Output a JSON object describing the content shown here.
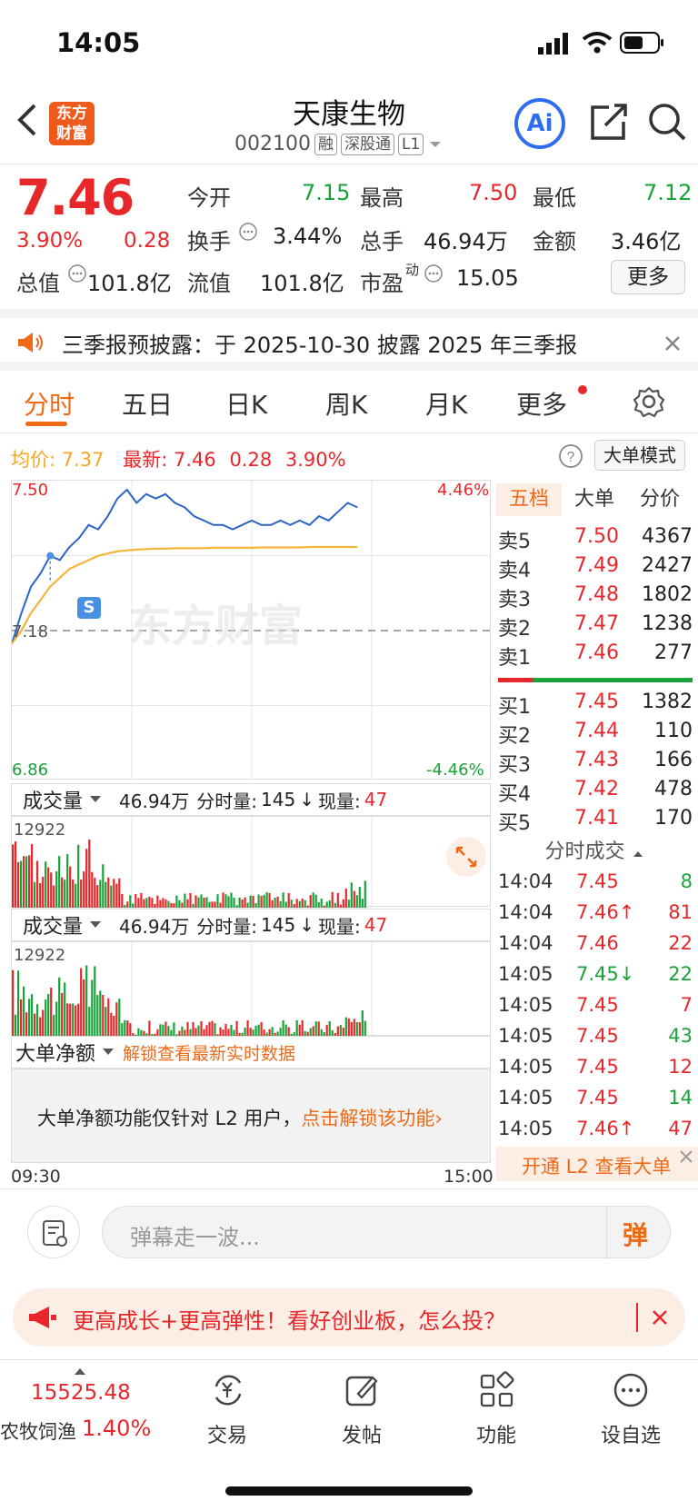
{
  "status": {
    "time": "14:05"
  },
  "header": {
    "title": "天康生物",
    "code": "002100",
    "tags": [
      "融",
      "深股通",
      "L1"
    ],
    "logo_text": "东方\n财富",
    "ai_label": "Ai"
  },
  "quote": {
    "price": "7.46",
    "pct": "3.90%",
    "change": "0.28",
    "rows": [
      [
        {
          "label": "今开",
          "value": "7.15",
          "color": "green"
        },
        {
          "label": "最高",
          "value": "7.50",
          "color": "red"
        },
        {
          "label": "最低",
          "value": "7.12",
          "color": "green"
        }
      ],
      [
        {
          "label": "换手",
          "value": "3.44%",
          "color": "normal"
        },
        {
          "label": "总手",
          "value": "46.94万",
          "color": "normal"
        },
        {
          "label": "金额",
          "value": "3.46亿",
          "color": "normal"
        }
      ]
    ],
    "total_value_label": "总值",
    "total_value": "101.8亿",
    "float_value_label": "流值",
    "float_value": "101.8亿",
    "pe_label": "市盈",
    "pe_sup": "动",
    "pe_value": "15.05",
    "more_label": "更多"
  },
  "notice": {
    "text": "三季报预披露：于 2025-10-30 披露 2025 年三季报"
  },
  "tabs": [
    "分时",
    "五日",
    "日K",
    "周K",
    "月K",
    "更多"
  ],
  "chart_info": {
    "avg_label": "均价:",
    "avg_value": "7.37",
    "latest_label": "最新:",
    "latest_value": "7.46",
    "latest_change": "0.28",
    "latest_pct": "3.90%",
    "mode_button": "大单模式",
    "high_price": "7.50",
    "low_price": "6.86",
    "high_pct": "4.46%",
    "low_pct": "-4.46%",
    "base_price": "7.18",
    "watermark": "东方财富",
    "signal": "S",
    "time_start": "09:30",
    "time_end": "15:00"
  },
  "chart_data": {
    "type": "line",
    "x_range": [
      "09:30",
      "15:00"
    ],
    "ylim": [
      6.86,
      7.5
    ],
    "reference": 7.18,
    "series": [
      {
        "values": [
          7.15,
          7.22,
          7.28,
          7.31,
          7.35,
          7.34,
          7.37,
          7.39,
          7.42,
          7.41,
          7.44,
          7.48,
          7.5,
          7.47,
          7.49,
          7.48,
          7.49,
          7.47,
          7.46,
          7.44,
          7.43,
          7.42,
          7.42,
          7.41,
          7.42,
          7.43,
          7.42,
          7.42,
          7.43,
          7.42,
          7.43,
          7.42,
          7.44,
          7.43,
          7.45,
          7.47,
          7.46
        ]
      },
      {
        "values": [
          7.15,
          7.18,
          7.22,
          7.25,
          7.28,
          7.3,
          7.32,
          7.33,
          7.34,
          7.35,
          7.355,
          7.36,
          7.362,
          7.364,
          7.365,
          7.366,
          7.366,
          7.367,
          7.367,
          7.367,
          7.367,
          7.368,
          7.368,
          7.368,
          7.368,
          7.368,
          7.369,
          7.369,
          7.369,
          7.369,
          7.369,
          7.37,
          7.37,
          7.37,
          7.37,
          7.37,
          7.37
        ]
      }
    ]
  },
  "orderbook": {
    "tabs": [
      "五档",
      "大单",
      "分价"
    ],
    "asks": [
      {
        "label": "卖5",
        "price": "7.50",
        "vol": "4367"
      },
      {
        "label": "卖4",
        "price": "7.49",
        "vol": "2427"
      },
      {
        "label": "卖3",
        "price": "7.48",
        "vol": "1802"
      },
      {
        "label": "卖2",
        "price": "7.47",
        "vol": "1238"
      },
      {
        "label": "卖1",
        "price": "7.46",
        "vol": "277"
      }
    ],
    "bids": [
      {
        "label": "买1",
        "price": "7.45",
        "vol": "1382"
      },
      {
        "label": "买2",
        "price": "7.44",
        "vol": "110"
      },
      {
        "label": "买3",
        "price": "7.43",
        "vol": "166"
      },
      {
        "label": "买4",
        "price": "7.42",
        "vol": "478"
      },
      {
        "label": "买5",
        "price": "7.41",
        "vol": "170"
      }
    ]
  },
  "trades": {
    "title": "分时成交",
    "rows": [
      {
        "time": "14:04",
        "price": "7.45",
        "arrow": "",
        "vol": "8",
        "color": "green"
      },
      {
        "time": "14:04",
        "price": "7.46↑",
        "arrow": "up",
        "vol": "81",
        "color": "red"
      },
      {
        "time": "14:04",
        "price": "7.46",
        "arrow": "",
        "vol": "22",
        "color": "red"
      },
      {
        "time": "14:05",
        "price": "7.45↓",
        "arrow": "down",
        "vol": "22",
        "color": "green"
      },
      {
        "time": "14:05",
        "price": "7.45",
        "arrow": "",
        "vol": "7",
        "color": "red"
      },
      {
        "time": "14:05",
        "price": "7.45",
        "arrow": "",
        "vol": "43",
        "color": "green"
      },
      {
        "time": "14:05",
        "price": "7.45",
        "arrow": "",
        "vol": "12",
        "color": "red"
      },
      {
        "time": "14:05",
        "price": "7.45",
        "arrow": "",
        "vol": "14",
        "color": "green"
      },
      {
        "time": "14:05",
        "price": "7.46↑",
        "arrow": "up",
        "vol": "47",
        "color": "red"
      }
    ],
    "l2_label": "开通 L2 查看大单"
  },
  "volume": {
    "label": "成交量",
    "total": "46.94万",
    "minute_label": "分时量:",
    "minute_value": "145",
    "now_label": "现量:",
    "now_value": "47",
    "max": "12922"
  },
  "bigorder": {
    "label": "大单净额",
    "unlock_link": "解锁查看最新实时数据",
    "desc": "大单净额功能仅针对 L2 用户，",
    "cta": "点击解锁该功能"
  },
  "comment": {
    "placeholder": "弹幕走一波...",
    "button": "弹"
  },
  "promo": {
    "text": "更高成长+更高弹性！看好创业板，怎么投？"
  },
  "bottom_nav": {
    "index_value": "15525.48",
    "index_name": "农牧饲渔",
    "index_pct": "1.40%",
    "items": [
      "交易",
      "发帖",
      "功能",
      "设自选"
    ]
  },
  "colors": {
    "red": "#e8272b",
    "green": "#1aa23a",
    "accent": "#ee6a17",
    "avg_line": "#f5b53c",
    "price_line": "#2c64c8"
  }
}
